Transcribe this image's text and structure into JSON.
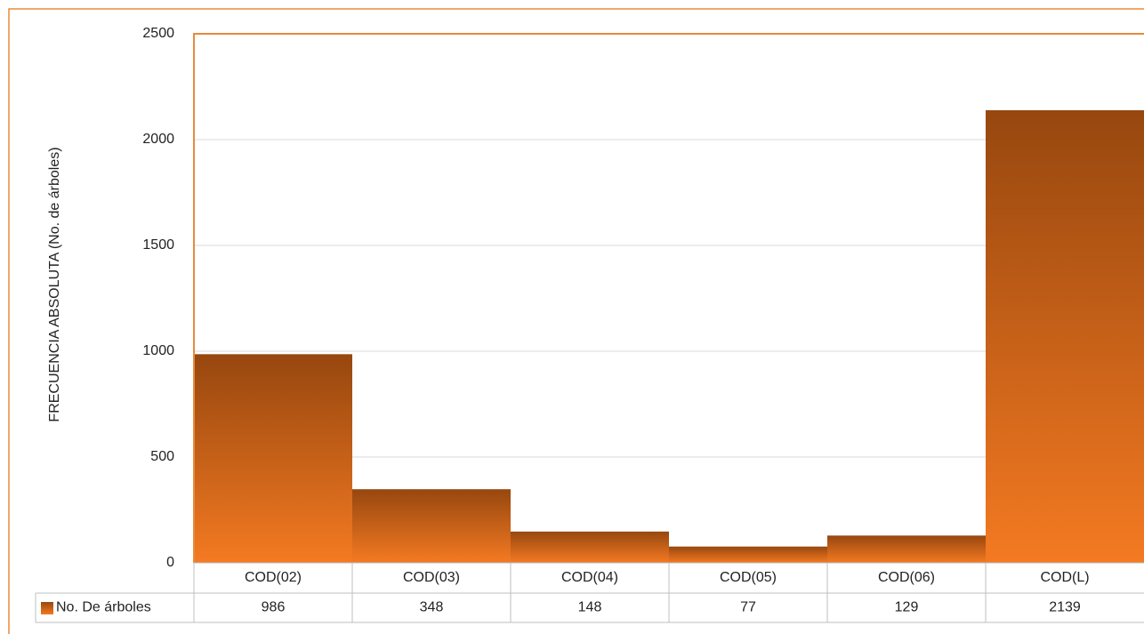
{
  "chart_data": {
    "type": "bar",
    "ylabel": "FRECUENCIA ABSOLUTA (No. de árboles)",
    "categories": [
      "COD(02)",
      "COD(03)",
      "COD(04)",
      "COD(05)",
      "COD(06)",
      "COD(L)"
    ],
    "series": [
      {
        "name": "No. De árboles",
        "color": "#f47a22",
        "values": [
          986,
          348,
          148,
          77,
          129,
          2139
        ]
      }
    ],
    "ylim": [
      0,
      2500
    ],
    "yticks": [
      0,
      500,
      1000,
      1500,
      2000,
      2500
    ],
    "grid": true
  }
}
